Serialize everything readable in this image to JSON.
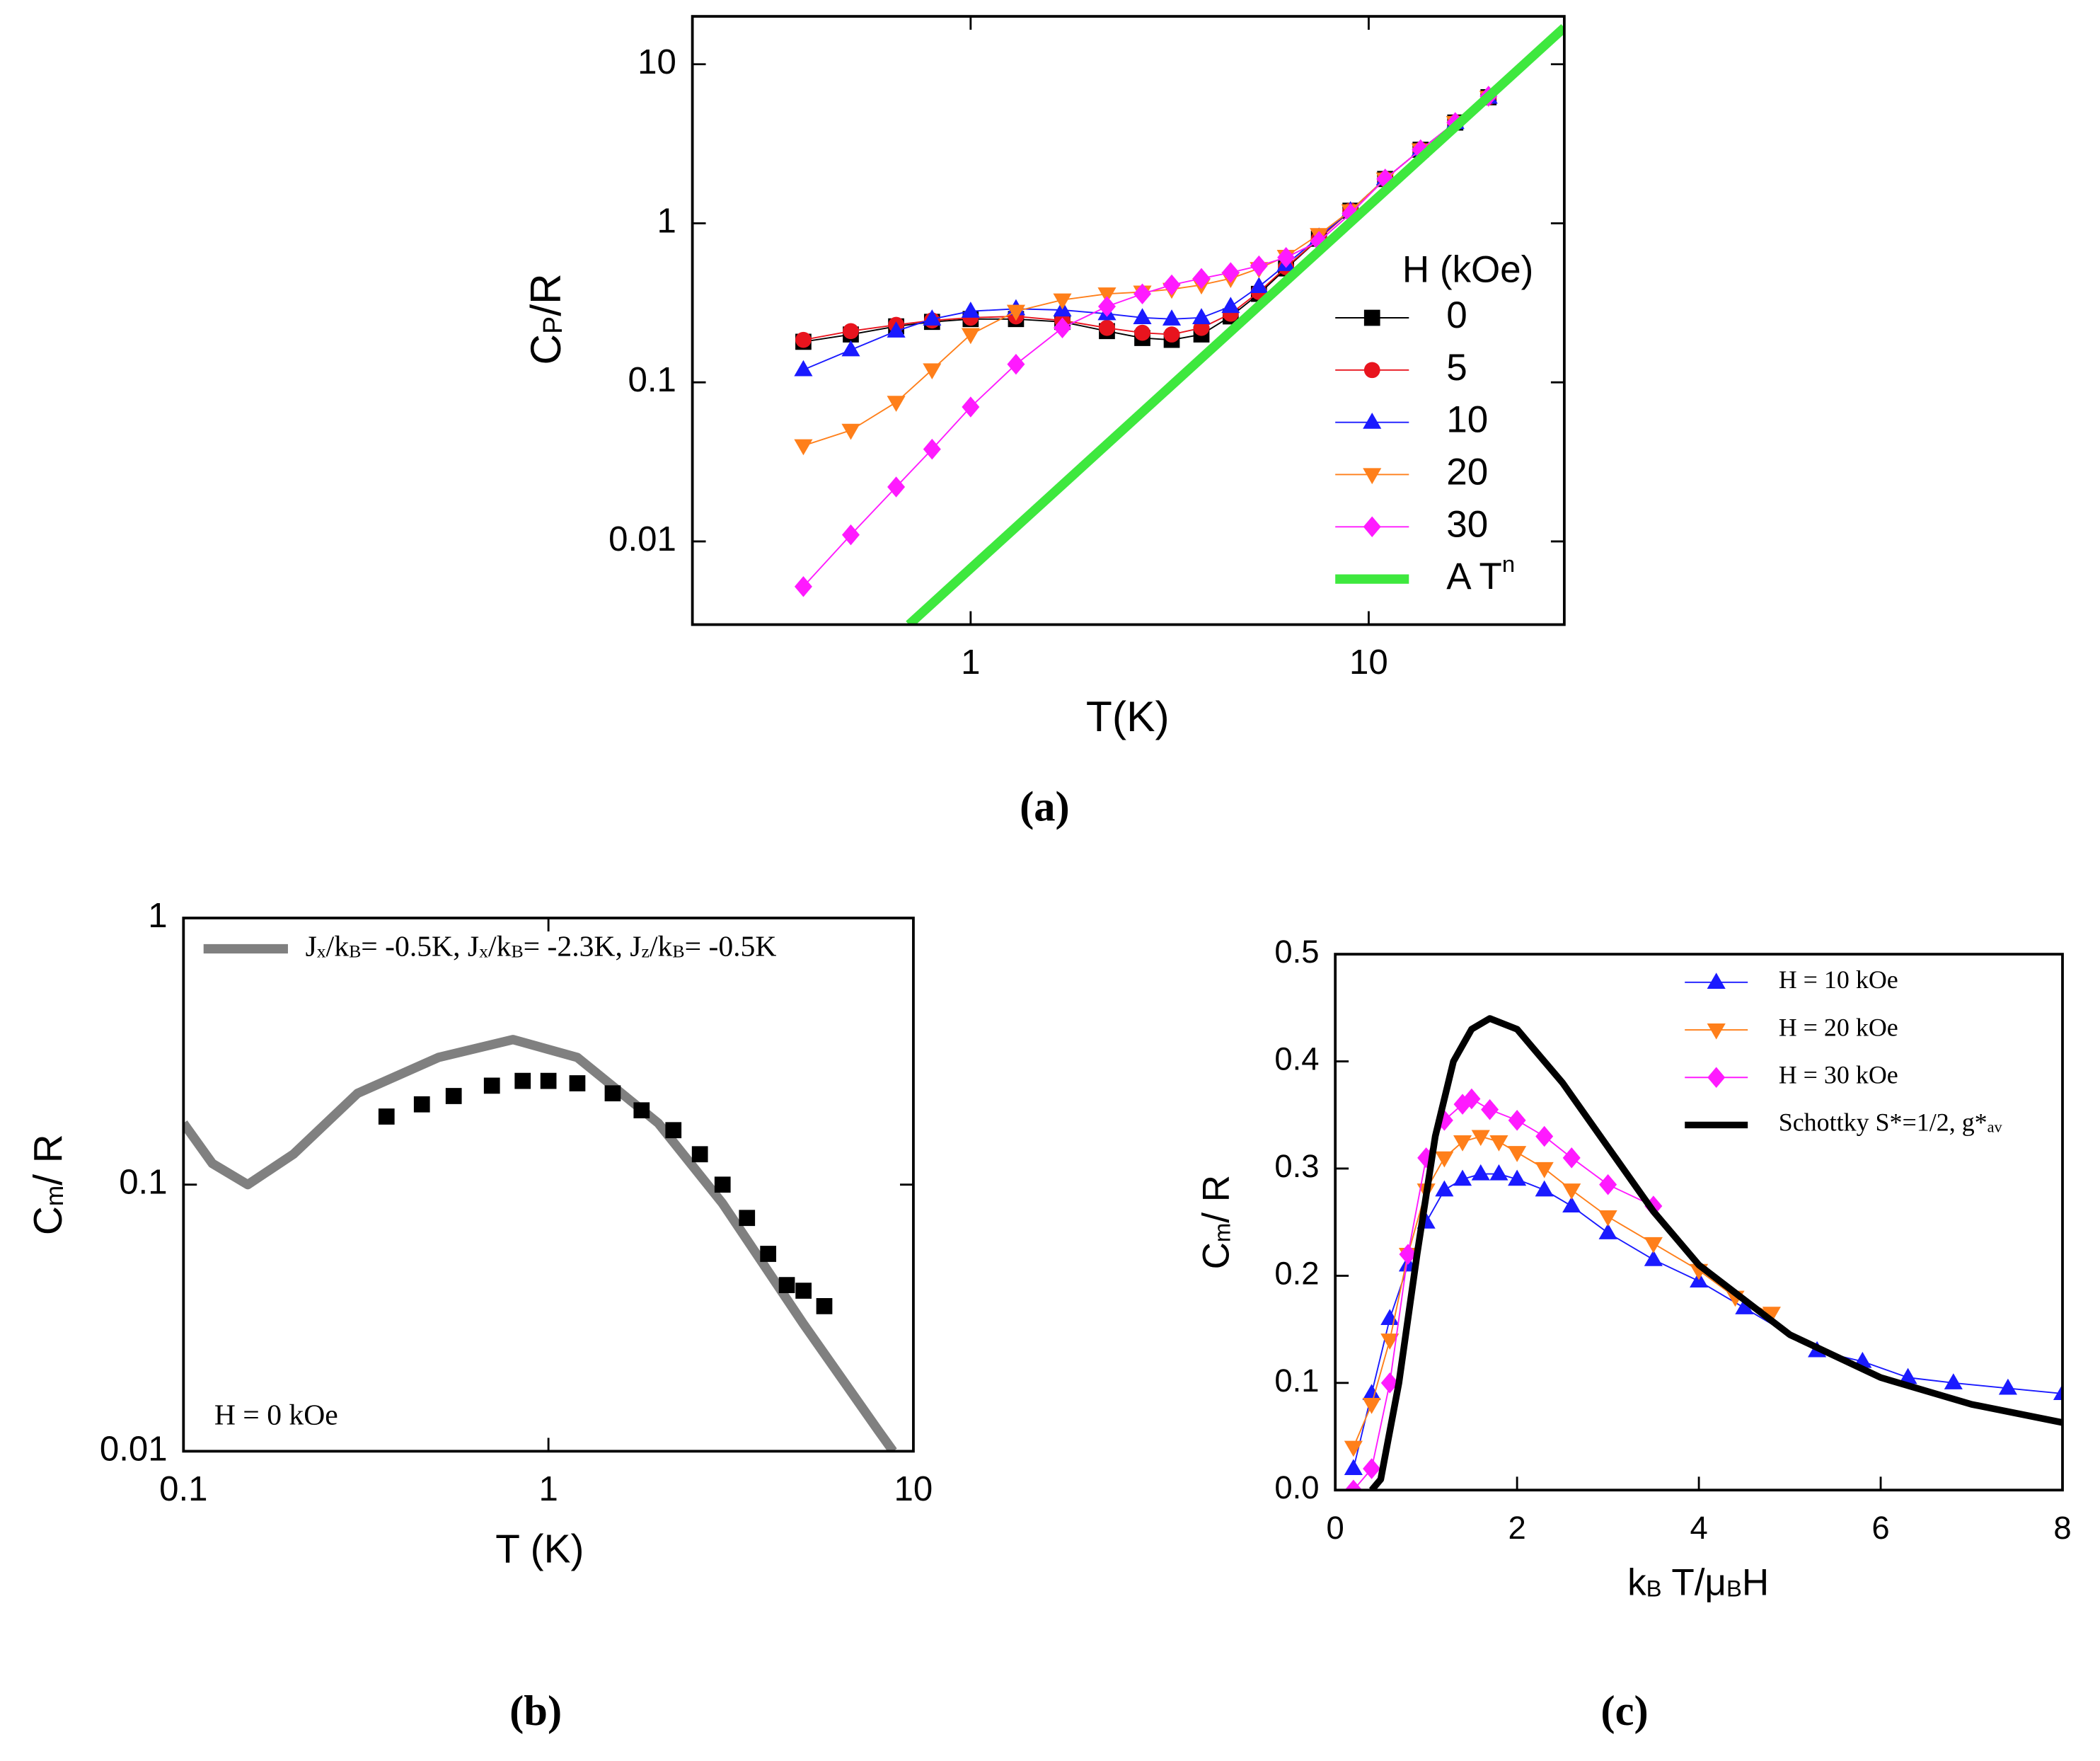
{
  "chart_data": [
    {
      "type": "scatter",
      "panel_label": "(a)",
      "x_label": "T(K)",
      "y_label": [
        "C",
        "P",
        "/R"
      ],
      "xscale": "log",
      "yscale": "log",
      "xlim": [
        0.2,
        31
      ],
      "ylim": [
        0.003,
        20
      ],
      "xticks": [
        1,
        10
      ],
      "yticks": [
        0.01,
        0.1,
        1,
        10
      ],
      "legend": "right",
      "legend_title": "H (kOe)",
      "series": [
        {
          "name": "0",
          "color": "#000000",
          "marker": "square",
          "x": [
            0.38,
            0.5,
            0.65,
            0.8,
            1.0,
            1.3,
            1.7,
            2.2,
            2.7,
            3.2,
            3.8,
            4.5,
            5.3,
            6.2,
            7.5,
            9,
            11,
            13.5,
            16.5,
            20
          ],
          "values": [
            0.18,
            0.2,
            0.225,
            0.24,
            0.25,
            0.25,
            0.24,
            0.21,
            0.19,
            0.185,
            0.2,
            0.26,
            0.36,
            0.52,
            0.8,
            1.2,
            1.9,
            2.9,
            4.3,
            6.2
          ]
        },
        {
          "name": "5",
          "color": "#e8141e",
          "marker": "circle",
          "x": [
            0.38,
            0.5,
            0.65,
            0.8,
            1.0,
            1.3,
            1.7,
            2.2,
            2.7,
            3.2,
            3.8,
            4.5,
            5.3,
            6.2,
            7.5,
            9,
            11,
            13.5,
            16.5,
            20
          ],
          "values": [
            0.185,
            0.21,
            0.23,
            0.245,
            0.255,
            0.26,
            0.245,
            0.22,
            0.205,
            0.2,
            0.22,
            0.27,
            0.37,
            0.53,
            0.8,
            1.2,
            1.9,
            2.9,
            4.3,
            6.2
          ]
        },
        {
          "name": "10",
          "color": "#1a1aff",
          "marker": "triangle",
          "x": [
            0.38,
            0.5,
            0.65,
            0.8,
            1.0,
            1.3,
            1.7,
            2.2,
            2.7,
            3.2,
            3.8,
            4.5,
            5.3,
            6.2,
            7.5,
            9,
            11,
            13.5,
            16.5,
            20
          ],
          "values": [
            0.12,
            0.16,
            0.21,
            0.25,
            0.28,
            0.29,
            0.285,
            0.27,
            0.255,
            0.25,
            0.255,
            0.3,
            0.4,
            0.55,
            0.82,
            1.2,
            1.9,
            2.9,
            4.3,
            6.2
          ]
        },
        {
          "name": "20",
          "color": "#ff7f1a",
          "marker": "triangle-down",
          "x": [
            0.38,
            0.5,
            0.65,
            0.8,
            1.0,
            1.3,
            1.7,
            2.2,
            2.7,
            3.2,
            3.8,
            4.5,
            5.3,
            6.2,
            7.5,
            9,
            11,
            13.5,
            16.5,
            20
          ],
          "values": [
            0.04,
            0.05,
            0.075,
            0.12,
            0.2,
            0.28,
            0.33,
            0.36,
            0.37,
            0.385,
            0.41,
            0.45,
            0.52,
            0.62,
            0.85,
            1.2,
            1.9,
            2.9,
            4.3,
            6.2
          ]
        },
        {
          "name": "30",
          "color": "#ff1aff",
          "marker": "diamond",
          "x": [
            0.38,
            0.5,
            0.65,
            0.8,
            1.0,
            1.3,
            1.7,
            2.2,
            2.7,
            3.2,
            3.8,
            4.5,
            5.3,
            6.2,
            7.5,
            9,
            11,
            13.5,
            16.5,
            20
          ],
          "values": [
            0.0052,
            0.011,
            0.022,
            0.038,
            0.07,
            0.13,
            0.22,
            0.3,
            0.36,
            0.41,
            0.45,
            0.49,
            0.54,
            0.61,
            0.77,
            1.15,
            1.9,
            2.9,
            4.3,
            6.3
          ]
        },
        {
          "name": "A T",
          "name_sup": "n",
          "color": "#3ee83e",
          "marker": null,
          "x": [
            0.7,
            31
          ],
          "values": [
            0.003,
            17
          ]
        }
      ]
    },
    {
      "type": "scatter",
      "panel_label": "(b)",
      "x_label": "T (K)",
      "y_label": [
        "C",
        "m",
        "/ R"
      ],
      "xscale": "log",
      "yscale": "log",
      "xlim": [
        0.1,
        10
      ],
      "ylim": [
        0.01,
        1
      ],
      "xticks": [
        0.1,
        1,
        10
      ],
      "yticks": [
        0.01,
        0.1,
        1
      ],
      "legend": "upper left",
      "annotation": "H = 0 kOe",
      "series": [
        {
          "name": [
            "J",
            "x",
            "/k",
            "B",
            "= -0.5K, J",
            "x",
            "/k",
            "B",
            "= -2.3K, J",
            "z",
            "/k",
            "B",
            "= -0.5K"
          ],
          "color": "#808080",
          "marker": null,
          "x": [
            0.1,
            0.12,
            0.15,
            0.2,
            0.3,
            0.5,
            0.8,
            1.2,
            2,
            3,
            5,
            8,
            8.8
          ],
          "values": [
            0.17,
            0.12,
            0.1,
            0.13,
            0.22,
            0.3,
            0.35,
            0.3,
            0.17,
            0.085,
            0.03,
            0.012,
            0.01
          ]
        },
        {
          "name": null,
          "color": "#000000",
          "marker": "square",
          "x": [
            0.36,
            0.45,
            0.55,
            0.7,
            0.85,
            1.0,
            1.2,
            1.5,
            1.8,
            2.2,
            2.6,
            3.0,
            3.5,
            4.0,
            4.5,
            5.0,
            5.7
          ],
          "values": [
            0.18,
            0.2,
            0.215,
            0.235,
            0.245,
            0.245,
            0.24,
            0.22,
            0.19,
            0.16,
            0.13,
            0.1,
            0.075,
            0.055,
            0.042,
            0.04,
            0.035
          ]
        }
      ]
    },
    {
      "type": "line",
      "panel_label": "(c)",
      "x_label": [
        "k",
        "B",
        " T/μ",
        "B",
        "H"
      ],
      "y_label": [
        "C",
        "m",
        "/ R"
      ],
      "xlim": [
        0,
        8
      ],
      "ylim": [
        0,
        0.5
      ],
      "xticks": [
        0,
        2,
        4,
        6,
        8
      ],
      "yticks": [
        {
          "value": 0,
          "label": "0.0"
        },
        0.1,
        0.2,
        0.3,
        0.4,
        0.5
      ],
      "legend": "upper right",
      "series": [
        {
          "name": "H = 10 kOe",
          "color": "#1a1aff",
          "marker": "triangle",
          "x": [
            0.2,
            0.4,
            0.6,
            0.8,
            1.0,
            1.2,
            1.4,
            1.6,
            1.8,
            2.0,
            2.3,
            2.6,
            3.0,
            3.5,
            4.0,
            4.5,
            5.3,
            5.8,
            6.3,
            6.8,
            7.4,
            8
          ],
          "values": [
            0.02,
            0.09,
            0.16,
            0.21,
            0.25,
            0.28,
            0.29,
            0.295,
            0.295,
            0.29,
            0.28,
            0.265,
            0.24,
            0.215,
            0.195,
            0.17,
            0.13,
            0.12,
            0.105,
            0.1,
            0.095,
            0.09
          ]
        },
        {
          "name": "H = 20 kOe",
          "color": "#ff7f1a",
          "marker": "triangle-down",
          "x": [
            0.2,
            0.4,
            0.6,
            0.8,
            1.0,
            1.2,
            1.4,
            1.6,
            1.8,
            2.0,
            2.3,
            2.6,
            3.0,
            3.5,
            4.0,
            4.4,
            4.8
          ],
          "values": [
            0.04,
            0.08,
            0.14,
            0.22,
            0.28,
            0.31,
            0.325,
            0.33,
            0.325,
            0.315,
            0.3,
            0.28,
            0.255,
            0.23,
            0.205,
            0.18,
            0.165
          ]
        },
        {
          "name": "H = 30 kOe",
          "color": "#ff1aff",
          "marker": "diamond",
          "x": [
            0.2,
            0.4,
            0.6,
            0.8,
            1.0,
            1.2,
            1.4,
            1.5,
            1.7,
            2.0,
            2.3,
            2.6,
            3.0,
            3.5
          ],
          "values": [
            0.0,
            0.02,
            0.1,
            0.22,
            0.31,
            0.345,
            0.36,
            0.365,
            0.355,
            0.345,
            0.33,
            0.31,
            0.285,
            0.265
          ]
        },
        {
          "name": [
            "Schottky S*=1/2, g*",
            "av"
          ],
          "color": "#000000",
          "marker": null,
          "x": [
            0.4,
            0.5,
            0.7,
            0.9,
            1.1,
            1.3,
            1.5,
            1.7,
            2.0,
            2.5,
            3,
            3.5,
            4,
            5,
            6,
            7,
            8
          ],
          "values": [
            0,
            0.01,
            0.1,
            0.22,
            0.33,
            0.4,
            0.43,
            0.44,
            0.43,
            0.38,
            0.32,
            0.26,
            0.21,
            0.145,
            0.105,
            0.08,
            0.063
          ]
        }
      ]
    }
  ]
}
